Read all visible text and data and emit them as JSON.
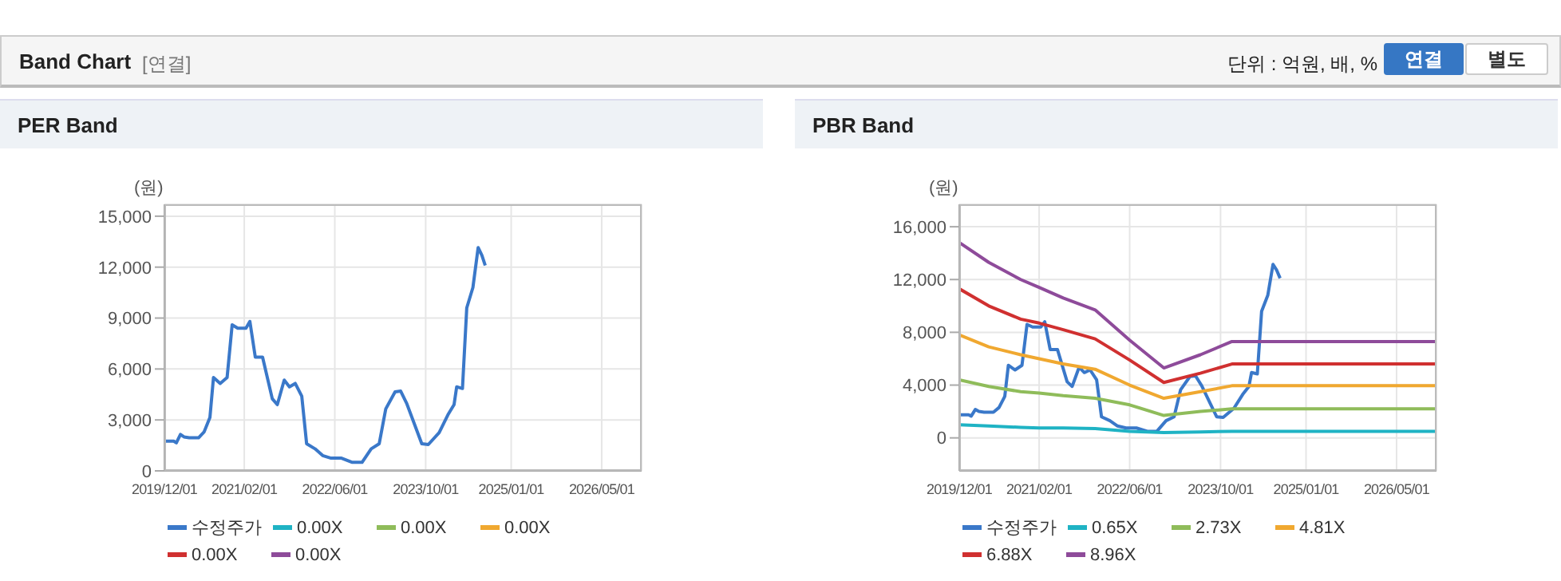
{
  "chart_data": [
    {
      "type": "line",
      "title": "PER Band",
      "ylabel": "(원)",
      "annotations": [
        "Band Chart",
        "[연결]",
        "단위 : 억원, 배, %",
        "연결",
        "별도"
      ],
      "xlim": [
        "2019-12-01",
        "2026-12-01"
      ],
      "xticks": [
        {
          "value": "2019-12-01",
          "label": "2019/12/01"
        },
        {
          "value": "2021-02-01",
          "label": "2021/02/01"
        },
        {
          "value": "2022-06-01",
          "label": "2022/06/01"
        },
        {
          "value": "2023-10-01",
          "label": "2023/10/01"
        },
        {
          "value": "2025-01-01",
          "label": "2025/01/01"
        },
        {
          "value": "2026-05-01",
          "label": "2026/05/01"
        }
      ],
      "ylim": [
        0,
        15700
      ],
      "yticks": [
        0,
        {
          "value": 3000,
          "label": "3,000"
        },
        {
          "value": 6000,
          "label": "6,000"
        },
        {
          "value": 9000,
          "label": "9,000"
        },
        {
          "value": 12000,
          "label": "12,000"
        },
        {
          "value": 15000,
          "label": "15,000"
        }
      ],
      "grid": true,
      "legend": "bottom",
      "series": [
        {
          "name": "수정주가",
          "color": "#3a78c9",
          "x": [
            "2019-12-01",
            "2020-01-20",
            "2020-02-03",
            "2020-02-25",
            "2020-03-15",
            "2020-04-12",
            "2020-06-01",
            "2020-07-01",
            "2020-08-01",
            "2020-08-20",
            "2020-09-25",
            "2020-11-01",
            "2020-11-28",
            "2020-12-28",
            "2021-02-10",
            "2021-03-03",
            "2021-04-01",
            "2021-05-10",
            "2021-07-01",
            "2021-07-28",
            "2021-09-03",
            "2021-10-01",
            "2021-11-01",
            "2021-12-06",
            "2022-01-01",
            "2022-02-15",
            "2022-03-28",
            "2022-05-12",
            "2022-07-07",
            "2022-09-03",
            "2022-10-25",
            "2022-12-13",
            "2023-01-25",
            "2023-03-01",
            "2023-04-20",
            "2023-05-20",
            "2023-06-22",
            "2023-09-10",
            "2023-10-15",
            "2023-12-12",
            "2024-01-28",
            "2024-03-01",
            "2024-03-15",
            "2024-04-15",
            "2024-05-08",
            "2024-06-10",
            "2024-07-08",
            "2024-07-28",
            "2024-08-15"
          ],
          "values": [
            1750,
            1750,
            1650,
            2150,
            2000,
            1950,
            1950,
            2300,
            3150,
            5500,
            5150,
            5500,
            8600,
            8400,
            8400,
            8800,
            6700,
            6700,
            4250,
            3900,
            5350,
            4950,
            5150,
            4400,
            1600,
            1300,
            900,
            750,
            750,
            500,
            500,
            1300,
            1600,
            3650,
            4650,
            4700,
            3950,
            1600,
            1550,
            2250,
            3300,
            3900,
            4950,
            4850,
            9600,
            10800,
            13150,
            12700,
            12100
          ]
        },
        {
          "name": "0.00X",
          "color": "#1fb3c4"
        },
        {
          "name": "0.00X",
          "color": "#8fbc5a"
        },
        {
          "name": "0.00X",
          "color": "#f0a830"
        },
        {
          "name": "0.00X",
          "color": "#d03030"
        },
        {
          "name": "0.00X",
          "color": "#8e4b9a"
        }
      ]
    },
    {
      "type": "line",
      "title": "PBR Band",
      "ylabel": "(원)",
      "xlim": [
        "2019-12-01",
        "2026-12-01"
      ],
      "xticks": [
        {
          "value": "2019-12-01",
          "label": "2019/12/01"
        },
        {
          "value": "2021-02-01",
          "label": "2021/02/01"
        },
        {
          "value": "2022-06-01",
          "label": "2022/06/01"
        },
        {
          "value": "2023-10-01",
          "label": "2023/10/01"
        },
        {
          "value": "2025-01-01",
          "label": "2025/01/01"
        },
        {
          "value": "2026-05-01",
          "label": "2026/05/01"
        }
      ],
      "ylim": [
        -2500,
        17700
      ],
      "yticks": [
        0,
        {
          "value": 4000,
          "label": "4,000"
        },
        {
          "value": 8000,
          "label": "8,000"
        },
        {
          "value": 12000,
          "label": "12,000"
        },
        {
          "value": 16000,
          "label": "16,000"
        }
      ],
      "grid": true,
      "legend": "bottom",
      "x": [
        "2019-12-01",
        "2020-05-07",
        "2020-10-25",
        "2021-02-01",
        "2021-06-10",
        "2021-11-28",
        "2022-06-01",
        "2022-12-01",
        "2023-06-15",
        "2023-12-01",
        "2026-12-01"
      ],
      "series": [
        {
          "name": "수정주가",
          "color": "#3a78c9",
          "x": [
            "2019-12-01",
            "2020-01-20",
            "2020-02-03",
            "2020-02-25",
            "2020-03-15",
            "2020-04-12",
            "2020-06-01",
            "2020-07-01",
            "2020-08-01",
            "2020-08-20",
            "2020-09-25",
            "2020-11-01",
            "2020-11-28",
            "2020-12-28",
            "2021-02-10",
            "2021-03-03",
            "2021-04-01",
            "2021-05-10",
            "2021-07-01",
            "2021-07-28",
            "2021-09-03",
            "2021-10-01",
            "2021-11-01",
            "2021-12-06",
            "2022-01-01",
            "2022-02-15",
            "2022-03-28",
            "2022-05-12",
            "2022-07-07",
            "2022-09-03",
            "2022-10-25",
            "2022-12-13",
            "2023-01-25",
            "2023-03-01",
            "2023-04-20",
            "2023-05-20",
            "2023-06-22",
            "2023-09-10",
            "2023-10-15",
            "2023-12-12",
            "2024-01-28",
            "2024-03-01",
            "2024-03-15",
            "2024-04-15",
            "2024-05-08",
            "2024-06-10",
            "2024-07-08",
            "2024-07-28",
            "2024-08-15"
          ],
          "values": [
            1750,
            1750,
            1650,
            2150,
            2000,
            1950,
            1950,
            2300,
            3150,
            5500,
            5150,
            5500,
            8600,
            8400,
            8400,
            8800,
            6700,
            6700,
            4250,
            3900,
            5350,
            4950,
            5150,
            4400,
            1600,
            1300,
            900,
            750,
            750,
            500,
            500,
            1300,
            1600,
            3650,
            4650,
            4700,
            3950,
            1600,
            1550,
            2250,
            3300,
            3900,
            4950,
            4850,
            9600,
            10800,
            13150,
            12700,
            12100
          ]
        },
        {
          "name": "0.65X",
          "color": "#1fb3c4",
          "values": [
            1000,
            900,
            800,
            750,
            750,
            700,
            500,
            400,
            450,
            500,
            500
          ]
        },
        {
          "name": "2.73X",
          "color": "#8fbc5a",
          "values": [
            4400,
            3900,
            3500,
            3400,
            3200,
            3000,
            2500,
            1700,
            2000,
            2200,
            2200
          ]
        },
        {
          "name": "4.81X",
          "color": "#f0a830",
          "values": [
            7800,
            6900,
            6300,
            6000,
            5600,
            5200,
            4000,
            3000,
            3500,
            3950,
            3950
          ]
        },
        {
          "name": "6.88X",
          "color": "#d03030",
          "values": [
            11300,
            10000,
            9000,
            8700,
            8200,
            7500,
            5900,
            4200,
            4900,
            5600,
            5600
          ]
        },
        {
          "name": "8.96X",
          "color": "#8e4b9a",
          "values": [
            14800,
            13300,
            12000,
            11400,
            10600,
            9700,
            7400,
            5300,
            6300,
            7300,
            7300
          ]
        }
      ]
    }
  ]
}
